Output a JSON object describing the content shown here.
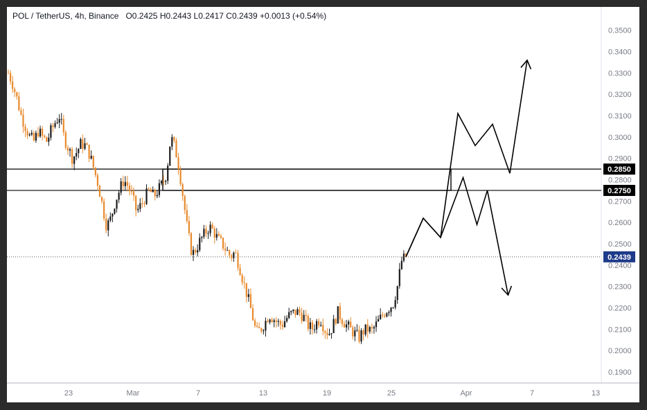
{
  "legend": {
    "symbol": "POL / TetherUS, 4h, Binance",
    "open_label": "O",
    "open": "0.2425",
    "high_label": "H",
    "high": "0.2443",
    "low_label": "L",
    "low": "0.2417",
    "close_label": "C",
    "close": "0.2439",
    "change": "+0.0013 (+0.54%)"
  },
  "chart_data": {
    "type": "candlestick",
    "title": "POL / TetherUS, 4h, Binance",
    "ylim": [
      0.185,
      0.355
    ],
    "y_ticks": [
      "0.3500",
      "0.3400",
      "0.3300",
      "0.3200",
      "0.3100",
      "0.3000",
      "0.2900",
      "0.2800",
      "0.2750",
      "0.2700",
      "0.2600",
      "0.2500",
      "0.2400",
      "0.2300",
      "0.2200",
      "0.2100",
      "0.2000",
      "0.1900"
    ],
    "x_ticks": [
      "23",
      "Mar",
      "7",
      "13",
      "19",
      "25",
      "Apr",
      "7",
      "13"
    ],
    "price_lines": [
      {
        "label": "0.2850",
        "value": 0.285
      },
      {
        "label": "0.2750",
        "value": 0.275
      }
    ],
    "current_price": {
      "label": "0.2439",
      "value": 0.2439
    },
    "colors": {
      "up": "#1a1a1a",
      "down": "#e8892c",
      "current_badge": "#1e3a8a",
      "line_badge": "#000000"
    },
    "price_path": [
      [
        0,
        0.33
      ],
      [
        2,
        0.325
      ],
      [
        4,
        0.318
      ],
      [
        6,
        0.31
      ],
      [
        8,
        0.305
      ],
      [
        10,
        0.3
      ],
      [
        12,
        0.298
      ],
      [
        14,
        0.303
      ],
      [
        16,
        0.3
      ],
      [
        18,
        0.298
      ],
      [
        20,
        0.303
      ],
      [
        22,
        0.307
      ],
      [
        24,
        0.31
      ],
      [
        26,
        0.3
      ],
      [
        28,
        0.295
      ],
      [
        30,
        0.29
      ],
      [
        32,
        0.293
      ],
      [
        34,
        0.297
      ],
      [
        36,
        0.296
      ],
      [
        38,
        0.292
      ],
      [
        40,
        0.285
      ],
      [
        42,
        0.278
      ],
      [
        44,
        0.268
      ],
      [
        46,
        0.258
      ],
      [
        48,
        0.262
      ],
      [
        50,
        0.27
      ],
      [
        52,
        0.275
      ],
      [
        54,
        0.28
      ],
      [
        56,
        0.277
      ],
      [
        58,
        0.272
      ],
      [
        60,
        0.265
      ],
      [
        62,
        0.268
      ],
      [
        64,
        0.272
      ],
      [
        66,
        0.275
      ],
      [
        68,
        0.272
      ],
      [
        70,
        0.275
      ],
      [
        72,
        0.278
      ],
      [
        74,
        0.283
      ],
      [
        76,
        0.3
      ],
      [
        78,
        0.295
      ],
      [
        80,
        0.285
      ],
      [
        82,
        0.27
      ],
      [
        84,
        0.255
      ],
      [
        86,
        0.245
      ],
      [
        88,
        0.248
      ],
      [
        90,
        0.252
      ],
      [
        92,
        0.255
      ],
      [
        94,
        0.258
      ],
      [
        96,
        0.256
      ],
      [
        98,
        0.252
      ],
      [
        100,
        0.25
      ],
      [
        102,
        0.247
      ],
      [
        104,
        0.244
      ],
      [
        106,
        0.246
      ],
      [
        108,
        0.24
      ],
      [
        110,
        0.232
      ],
      [
        112,
        0.225
      ],
      [
        114,
        0.217
      ],
      [
        116,
        0.208
      ],
      [
        118,
        0.21
      ],
      [
        120,
        0.213
      ],
      [
        122,
        0.217
      ],
      [
        124,
        0.215
      ],
      [
        126,
        0.213
      ],
      [
        128,
        0.212
      ],
      [
        130,
        0.215
      ],
      [
        132,
        0.217
      ],
      [
        134,
        0.218
      ],
      [
        136,
        0.218
      ],
      [
        138,
        0.216
      ],
      [
        140,
        0.212
      ],
      [
        142,
        0.21
      ],
      [
        144,
        0.213
      ],
      [
        146,
        0.215
      ],
      [
        148,
        0.21
      ],
      [
        150,
        0.208
      ],
      [
        152,
        0.212
      ],
      [
        154,
        0.218
      ],
      [
        156,
        0.215
      ],
      [
        158,
        0.212
      ],
      [
        160,
        0.21
      ],
      [
        162,
        0.208
      ],
      [
        164,
        0.206
      ],
      [
        166,
        0.209
      ],
      [
        168,
        0.21
      ],
      [
        170,
        0.209
      ],
      [
        172,
        0.212
      ],
      [
        174,
        0.215
      ],
      [
        176,
        0.218
      ],
      [
        178,
        0.22
      ],
      [
        180,
        0.222
      ],
      [
        182,
        0.23
      ],
      [
        184,
        0.242
      ],
      [
        186,
        0.2439
      ]
    ],
    "projection_up": [
      [
        0.2439,
        0
      ],
      [
        0.262,
        1
      ],
      [
        0.253,
        2
      ],
      [
        0.311,
        3
      ],
      [
        0.296,
        4
      ],
      [
        0.306,
        5
      ],
      [
        0.283,
        6
      ],
      [
        0.336,
        7
      ]
    ],
    "projection_down": [
      [
        0.2439,
        0
      ],
      [
        0.262,
        1
      ],
      [
        0.253,
        2
      ],
      [
        0.281,
        3.3
      ],
      [
        0.259,
        4.1
      ],
      [
        0.275,
        4.7
      ],
      [
        0.226,
        5.9
      ]
    ]
  }
}
